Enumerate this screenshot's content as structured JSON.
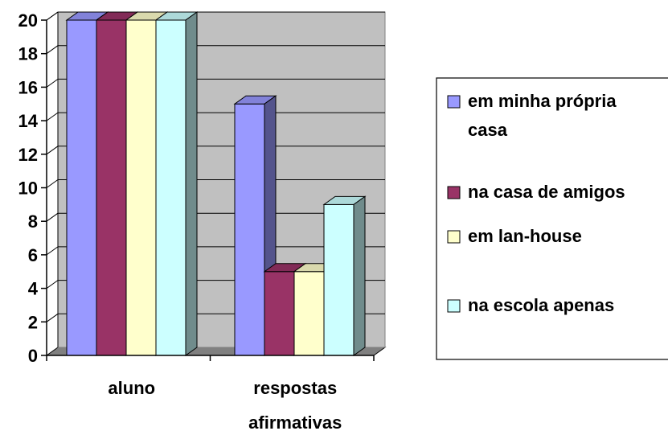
{
  "chart_data": {
    "type": "bar",
    "categories": [
      "aluno",
      "respostas afirmativas"
    ],
    "series": [
      {
        "name": "em minha própria casa",
        "values": [
          20,
          15
        ],
        "color": "#9999FF"
      },
      {
        "name": "na casa de amigos",
        "values": [
          20,
          5
        ],
        "color": "#993366"
      },
      {
        "name": "em lan-house",
        "values": [
          20,
          5
        ],
        "color": "#FFFFCC"
      },
      {
        "name": "na escola apenas",
        "values": [
          20,
          9
        ],
        "color": "#CCFFFF"
      }
    ],
    "ylim": [
      0,
      20
    ],
    "yticks": [
      "0",
      "2",
      "4",
      "6",
      "8",
      "10",
      "12",
      "14",
      "16",
      "18",
      "20"
    ],
    "grid": true,
    "legend_position": "right",
    "background_color": "#C0C0C0"
  }
}
